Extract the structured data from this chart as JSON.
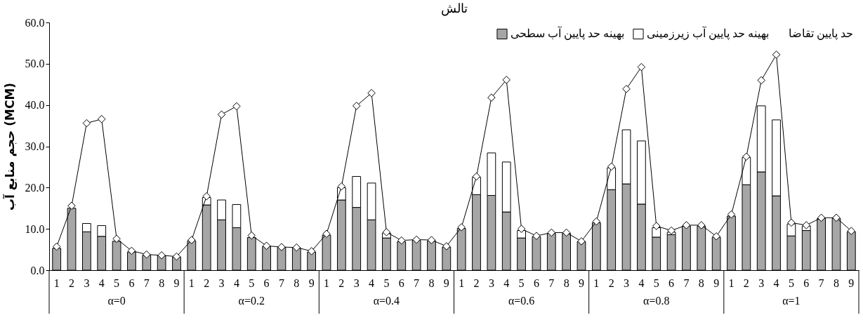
{
  "chart_data": {
    "type": "bar",
    "title": "تالش",
    "ylabel": "حجم منابع آب (MCM)",
    "categories": [
      "1",
      "2",
      "3",
      "4",
      "5",
      "6",
      "7",
      "8",
      "9",
      "1",
      "2",
      "3",
      "4",
      "5",
      "6",
      "7",
      "8",
      "9",
      "1",
      "2",
      "3",
      "4",
      "5",
      "6",
      "7",
      "8",
      "9",
      "1",
      "2",
      "3",
      "4",
      "5",
      "6",
      "7",
      "8",
      "9",
      "1",
      "2",
      "3",
      "4",
      "5",
      "6",
      "7",
      "8",
      "9",
      "1",
      "2",
      "3",
      "4",
      "5",
      "6",
      "7",
      "8",
      "9"
    ],
    "annotations": [
      "α=0",
      "α=0.2",
      "α=0.4",
      "α=0.6",
      "α=0.8",
      "α=1"
    ],
    "stacked": true,
    "series": [
      {
        "name": "بهینه حد پایین آب سطحی",
        "color": "#a6a6a6",
        "values": [
          5.3,
          15.0,
          9.3,
          8.2,
          7.0,
          4.4,
          3.6,
          3.5,
          3.2,
          7.1,
          15.8,
          12.2,
          10.3,
          7.9,
          5.7,
          5.5,
          5.4,
          4.4,
          8.5,
          17.0,
          15.2,
          12.2,
          7.8,
          6.9,
          7.2,
          7.1,
          5.6,
          10.1,
          18.3,
          18.1,
          14.1,
          7.8,
          8.1,
          8.9,
          8.9,
          6.9,
          11.5,
          19.5,
          20.9,
          16.0,
          8.0,
          8.6,
          10.7,
          10.7,
          8.0,
          13.1,
          20.7,
          23.8,
          18.0,
          8.3,
          9.6,
          12.5,
          12.5,
          9.3
        ]
      },
      {
        "name": "بهینه حد پایین آب زیرزمینی",
        "color": "#ffffff",
        "values": [
          0,
          0,
          2.0,
          2.6,
          null,
          0,
          0,
          0,
          0,
          0,
          1.8,
          4.8,
          5.6,
          null,
          0,
          0,
          0,
          0,
          0,
          3.0,
          7.5,
          8.9,
          1.2,
          0,
          0,
          0,
          0,
          0,
          4.2,
          10.3,
          12.1,
          1.8,
          0,
          0,
          0,
          0,
          0,
          5.3,
          13.1,
          15.3,
          2.3,
          0.6,
          0,
          0,
          0,
          0,
          6.6,
          16.0,
          18.4,
          2.9,
          1.1,
          0,
          0,
          0
        ]
      },
      {
        "name": "حد پایین تقاضا",
        "type": "line",
        "color": "#000000",
        "marker": "diamond",
        "line_style": "solid",
        "values": [
          5.7,
          15.6,
          35.6,
          36.6,
          7.6,
          4.7,
          3.8,
          3.6,
          3.3,
          7.3,
          17.9,
          37.7,
          39.7,
          8.4,
          5.9,
          5.6,
          5.5,
          4.6,
          8.8,
          20.3,
          39.8,
          42.9,
          9.2,
          7.2,
          7.4,
          7.3,
          5.8,
          10.4,
          22.7,
          41.8,
          46.1,
          10.0,
          8.3,
          9.1,
          9.1,
          7.0,
          11.8,
          25.1,
          43.9,
          49.2,
          10.7,
          9.6,
          10.9,
          10.9,
          8.2,
          13.5,
          27.5,
          46.0,
          52.2,
          11.5,
          10.9,
          12.7,
          12.7,
          9.5
        ]
      }
    ],
    "ylim": [
      0,
      60
    ],
    "yticks": [
      {
        "value": 0,
        "label": "0.0"
      },
      {
        "value": 10,
        "label": "10.0"
      },
      {
        "value": 20,
        "label": "20.0"
      },
      {
        "value": 30,
        "label": "30.0"
      },
      {
        "value": 40,
        "label": "40.0"
      },
      {
        "value": 50,
        "label": "50.0"
      },
      {
        "value": 60,
        "label": "60.0"
      }
    ],
    "legend": "top right"
  }
}
